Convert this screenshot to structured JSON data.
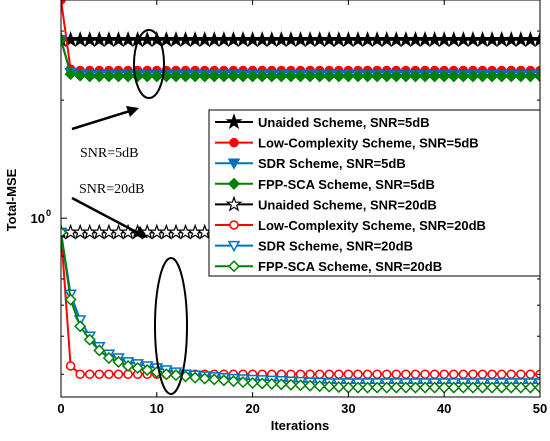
{
  "chart_data": {
    "type": "line",
    "xlabel": "Iterations",
    "ylabel": "Total-MSE",
    "xlim": [
      0,
      50
    ],
    "ylim": [
      0.35,
      3.6
    ],
    "y_scale": "log",
    "grid": false,
    "legend_position": "right",
    "x_ticks": [
      {
        "value": 0,
        "label": "0"
      },
      {
        "value": 10,
        "label": "10"
      },
      {
        "value": 20,
        "label": "20"
      },
      {
        "value": 30,
        "label": "30"
      },
      {
        "value": 40,
        "label": "40"
      },
      {
        "value": 50,
        "label": "50"
      }
    ],
    "y_ticks": [
      {
        "value": 1,
        "label": "10",
        "superscript": "0"
      }
    ],
    "annotations": [
      {
        "text": "SNR=5dB"
      },
      {
        "text": "SNR=20dB"
      }
    ],
    "x": [
      0,
      1,
      2,
      3,
      4,
      5,
      6,
      7,
      8,
      9,
      10,
      11,
      12,
      13,
      14,
      15,
      16,
      17,
      18,
      19,
      20,
      21,
      22,
      23,
      24,
      25,
      26,
      27,
      28,
      29,
      30,
      31,
      32,
      33,
      34,
      35,
      36,
      37,
      38,
      39,
      40,
      41,
      42,
      43,
      44,
      45,
      46,
      47,
      48,
      49,
      50
    ],
    "series": [
      {
        "name": "Unaided Scheme, SNR=5dB",
        "color": "#000000",
        "marker": "star-filled",
        "values": [
          2.85,
          2.85,
          2.85,
          2.85,
          2.85,
          2.85,
          2.85,
          2.85,
          2.85,
          2.85,
          2.85,
          2.85,
          2.85,
          2.85,
          2.85,
          2.85,
          2.85,
          2.85,
          2.85,
          2.85,
          2.85,
          2.85,
          2.85,
          2.85,
          2.85,
          2.85,
          2.85,
          2.85,
          2.85,
          2.85,
          2.85,
          2.85,
          2.85,
          2.85,
          2.85,
          2.85,
          2.85,
          2.85,
          2.85,
          2.85,
          2.85,
          2.85,
          2.85,
          2.85,
          2.85,
          2.85,
          2.85,
          2.85,
          2.85,
          2.85,
          2.85
        ]
      },
      {
        "name": "Low-Complexity Scheme, SNR=5dB",
        "color": "#ff0000",
        "marker": "circle-filled",
        "values": [
          3.6,
          2.4,
          2.38,
          2.38,
          2.38,
          2.38,
          2.38,
          2.38,
          2.38,
          2.38,
          2.38,
          2.38,
          2.38,
          2.38,
          2.38,
          2.38,
          2.38,
          2.38,
          2.38,
          2.38,
          2.38,
          2.38,
          2.38,
          2.38,
          2.38,
          2.38,
          2.38,
          2.38,
          2.38,
          2.38,
          2.38,
          2.38,
          2.38,
          2.38,
          2.38,
          2.38,
          2.38,
          2.38,
          2.38,
          2.38,
          2.38,
          2.38,
          2.38,
          2.38,
          2.38,
          2.38,
          2.38,
          2.38,
          2.38,
          2.38,
          2.38
        ]
      },
      {
        "name": "SDR Scheme, SNR=5dB",
        "color": "#0070c0",
        "marker": "triangle-down-filled",
        "values": [
          2.85,
          2.35,
          2.33,
          2.32,
          2.32,
          2.32,
          2.32,
          2.32,
          2.32,
          2.32,
          2.32,
          2.32,
          2.32,
          2.32,
          2.32,
          2.32,
          2.32,
          2.32,
          2.32,
          2.32,
          2.32,
          2.32,
          2.32,
          2.32,
          2.32,
          2.32,
          2.32,
          2.32,
          2.32,
          2.32,
          2.32,
          2.32,
          2.32,
          2.32,
          2.32,
          2.32,
          2.32,
          2.32,
          2.32,
          2.32,
          2.32,
          2.32,
          2.32,
          2.32,
          2.32,
          2.32,
          2.32,
          2.32,
          2.32,
          2.32,
          2.32
        ]
      },
      {
        "name": "FPP-SCA Scheme, SNR=5dB",
        "color": "#008000",
        "marker": "diamond-filled",
        "values": [
          2.85,
          2.33,
          2.31,
          2.3,
          2.3,
          2.3,
          2.3,
          2.3,
          2.3,
          2.3,
          2.3,
          2.3,
          2.3,
          2.3,
          2.3,
          2.3,
          2.3,
          2.3,
          2.3,
          2.3,
          2.3,
          2.3,
          2.3,
          2.3,
          2.3,
          2.3,
          2.3,
          2.3,
          2.3,
          2.3,
          2.3,
          2.3,
          2.3,
          2.3,
          2.3,
          2.3,
          2.3,
          2.3,
          2.3,
          2.3,
          2.3,
          2.3,
          2.3,
          2.3,
          2.3,
          2.3,
          2.3,
          2.3,
          2.3,
          2.3,
          2.3
        ]
      },
      {
        "name": "Unaided Scheme, SNR=20dB",
        "color": "#000000",
        "marker": "star-open",
        "values": [
          0.92,
          0.92,
          0.92,
          0.92,
          0.92,
          0.92,
          0.92,
          0.92,
          0.92,
          0.92,
          0.92,
          0.92,
          0.92,
          0.92,
          0.92,
          0.92,
          0.92,
          0.92,
          0.92,
          0.92,
          0.92,
          0.92,
          0.92,
          0.92,
          0.92,
          0.92,
          0.92,
          0.92,
          0.92,
          0.92,
          0.92,
          0.92,
          0.92,
          0.92,
          0.92,
          0.92,
          0.92,
          0.92,
          0.92,
          0.92,
          0.92,
          0.92,
          0.92,
          0.92,
          0.92,
          0.92,
          0.92,
          0.92,
          0.92,
          0.92,
          0.92
        ]
      },
      {
        "name": "Low-Complexity Scheme, SNR=20dB",
        "color": "#ff0000",
        "marker": "circle-open",
        "values": [
          0.92,
          0.42,
          0.4,
          0.4,
          0.4,
          0.4,
          0.4,
          0.4,
          0.4,
          0.4,
          0.4,
          0.4,
          0.4,
          0.4,
          0.4,
          0.4,
          0.4,
          0.4,
          0.4,
          0.4,
          0.4,
          0.4,
          0.4,
          0.4,
          0.4,
          0.4,
          0.4,
          0.4,
          0.4,
          0.4,
          0.4,
          0.4,
          0.4,
          0.4,
          0.4,
          0.4,
          0.4,
          0.4,
          0.4,
          0.4,
          0.4,
          0.4,
          0.4,
          0.4,
          0.4,
          0.4,
          0.4,
          0.4,
          0.4,
          0.4,
          0.4
        ]
      },
      {
        "name": "SDR Scheme, SNR=20dB",
        "color": "#0070c0",
        "marker": "triangle-down-open",
        "values": [
          0.92,
          0.64,
          0.55,
          0.5,
          0.47,
          0.45,
          0.44,
          0.43,
          0.425,
          0.42,
          0.415,
          0.41,
          0.405,
          0.4,
          0.398,
          0.396,
          0.394,
          0.392,
          0.39,
          0.389,
          0.388,
          0.387,
          0.386,
          0.385,
          0.384,
          0.383,
          0.382,
          0.381,
          0.38,
          0.38,
          0.38,
          0.38,
          0.38,
          0.38,
          0.38,
          0.38,
          0.38,
          0.38,
          0.38,
          0.38,
          0.38,
          0.38,
          0.38,
          0.38,
          0.38,
          0.38,
          0.38,
          0.38,
          0.38,
          0.38,
          0.38
        ]
      },
      {
        "name": "FPP-SCA Scheme, SNR=20dB",
        "color": "#008000",
        "marker": "diamond-open",
        "values": [
          0.92,
          0.62,
          0.53,
          0.49,
          0.46,
          0.44,
          0.43,
          0.42,
          0.415,
          0.41,
          0.405,
          0.4,
          0.398,
          0.395,
          0.392,
          0.39,
          0.388,
          0.386,
          0.384,
          0.382,
          0.38,
          0.379,
          0.378,
          0.377,
          0.376,
          0.375,
          0.374,
          0.373,
          0.372,
          0.371,
          0.37,
          0.37,
          0.37,
          0.37,
          0.37,
          0.37,
          0.37,
          0.37,
          0.37,
          0.37,
          0.37,
          0.37,
          0.37,
          0.37,
          0.37,
          0.37,
          0.37,
          0.37,
          0.37,
          0.37,
          0.37
        ]
      }
    ]
  }
}
